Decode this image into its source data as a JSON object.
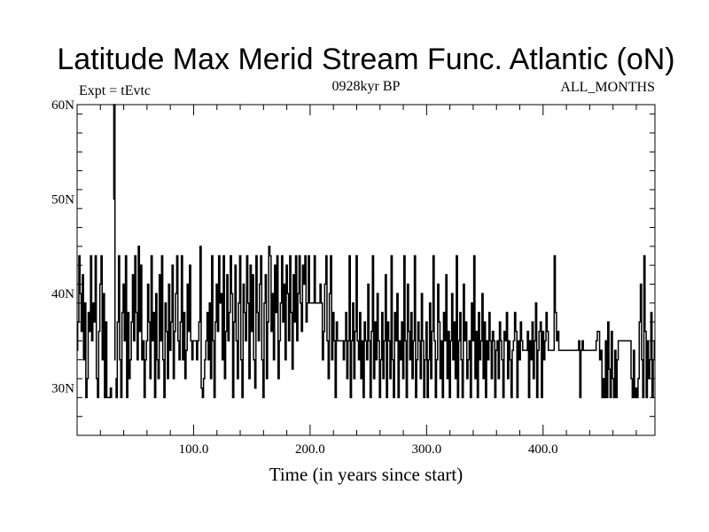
{
  "chart_data": {
    "type": "line",
    "title": "Latitude Max Merid Stream Func. Atlantic (oN)",
    "subtitle_left": "Expt = tEvtc",
    "subtitle_center": "0928kyr BP",
    "subtitle_right": "ALL_MONTHS",
    "xlabel": "Time (in years since start)",
    "ylabel": "",
    "xlim": [
      0,
      496
    ],
    "ylim": [
      25,
      60
    ],
    "x_ticks": [
      100,
      200,
      300,
      400
    ],
    "x_tick_labels": [
      "100.0",
      "200.0",
      "300.0",
      "400.0"
    ],
    "y_ticks": [
      30,
      40,
      50,
      60
    ],
    "y_tick_labels": [
      "30N",
      "40N",
      "50N",
      "60N"
    ],
    "grid": false,
    "series": [
      {
        "line_color": "#000000",
        "segments": [
          {
            "x_start": 0,
            "x_end": 10,
            "values": [
              34,
              37,
              44,
              40,
              36,
              42,
              33,
              39,
              29,
              31,
              38
            ]
          },
          {
            "x_start": 10,
            "x_end": 30,
            "values": [
              38,
              36,
              44,
              35,
              39,
              37,
              44,
              31,
              29,
              36,
              41,
              44,
              33,
              40,
              29,
              37,
              29,
              29,
              29,
              30,
              29
            ]
          },
          {
            "x_start": 31,
            "x_end": 33,
            "values": [
              50,
              60,
              33
            ]
          },
          {
            "x_start": 33,
            "x_end": 100,
            "values": [
              31,
              29,
              37,
              44,
              33,
              29,
              38,
              41,
              35,
              44,
              29,
              38,
              31,
              33,
              37,
              42,
              35,
              44,
              38,
              33,
              45,
              36,
              43,
              33,
              35,
              29,
              33,
              35,
              41,
              37,
              31,
              44,
              35,
              38,
              29,
              40,
              33,
              31,
              42,
              35,
              44,
              33,
              29,
              39,
              36,
              31,
              41,
              34,
              37,
              43,
              31,
              36,
              40,
              44,
              35,
              33,
              37,
              44,
              33,
              38,
              31,
              34,
              41,
              36,
              43,
              35,
              33,
              35
            ]
          },
          {
            "x_start": 100,
            "x_end": 200,
            "values": [
              35,
              35,
              35,
              33,
              35,
              37,
              45,
              30,
              29,
              31,
              33,
              35,
              38,
              33,
              39,
              31,
              44,
              35,
              29,
              37,
              41,
              36,
              44,
              39,
              40,
              33,
              44,
              31,
              36,
              42,
              35,
              38,
              44,
              40,
              29,
              37,
              43,
              35,
              31,
              39,
              44,
              33,
              29,
              41,
              38,
              35,
              44,
              39,
              31,
              43,
              36,
              42,
              33,
              30,
              44,
              38,
              35,
              41,
              44,
              33,
              29,
              39,
              42,
              31,
              37,
              45,
              44,
              36,
              40,
              33,
              43,
              38,
              44,
              31,
              35,
              39,
              44,
              37,
              41,
              33,
              43,
              40,
              35,
              44,
              38,
              32,
              42,
              37,
              44,
              35,
              40,
              44,
              39,
              36,
              43,
              41,
              44,
              37,
              39,
              44,
              39
            ]
          },
          {
            "x_start": 200,
            "x_end": 300,
            "values": [
              39,
              39,
              39,
              39,
              44,
              39,
              39,
              39,
              39,
              41,
              39,
              33,
              36,
              41,
              44,
              35,
              31,
              40,
              44,
              33,
              38,
              35,
              29,
              37,
              35,
              35,
              35,
              35,
              35,
              33,
              35,
              38,
              31,
              35,
              44,
              29,
              35,
              39,
              31,
              36,
              44,
              35,
              33,
              38,
              31,
              35,
              29,
              37,
              35,
              33,
              41,
              35,
              29,
              36,
              44,
              31,
              37,
              33,
              40,
              35,
              29,
              33,
              38,
              31,
              35,
              42,
              29,
              37,
              35,
              31,
              44,
              33,
              29,
              38,
              35,
              40,
              29,
              35,
              33,
              37,
              31,
              44,
              35,
              29,
              41,
              36,
              33,
              38,
              31,
              35,
              44,
              29,
              33,
              37,
              35,
              31,
              40,
              35,
              29,
              33,
              37
            ]
          },
          {
            "x_start": 300,
            "x_end": 410,
            "values": [
              37,
              29,
              33,
              39,
              31,
              36,
              44,
              35,
              29,
              33,
              41,
              37,
              31,
              35,
              29,
              38,
              35,
              42,
              31,
              36,
              29,
              35,
              40,
              33,
              37,
              31,
              44,
              29,
              35,
              38,
              33,
              29,
              41,
              35,
              37,
              31,
              33,
              35,
              29,
              39,
              35,
              44,
              31,
              36,
              29,
              38,
              33,
              35,
              40,
              31,
              37,
              29,
              35,
              33,
              38,
              35,
              31,
              36,
              35,
              29,
              34,
              35,
              31,
              37,
              35,
              33,
              29,
              36,
              35,
              38,
              31,
              35,
              33,
              29,
              34,
              35,
              38,
              36,
              29,
              35,
              33,
              37,
              35,
              34,
              34,
              34,
              34,
              36,
              29,
              35,
              33,
              37,
              31,
              35,
              39,
              29,
              34,
              36,
              37,
              29,
              36,
              33,
              35,
              38,
              36,
              34,
              34,
              34,
              34,
              34,
              44
            ]
          },
          {
            "x_start": 410,
            "x_end": 496,
            "values": [
              44,
              38,
              35,
              36,
              34,
              34,
              34,
              34,
              34,
              34,
              34,
              34,
              34,
              34,
              34,
              34,
              34,
              34,
              34,
              34,
              34,
              35,
              29,
              34,
              35,
              34,
              34,
              34,
              34,
              34,
              34,
              34,
              34,
              34,
              34,
              34,
              35,
              36,
              36,
              33,
              34,
              29,
              31,
              29,
              35,
              29,
              37,
              32,
              29,
              36,
              31,
              29,
              34,
              29,
              33,
              35,
              35,
              35,
              35,
              35,
              35,
              35,
              35,
              35,
              35,
              35,
              31,
              29,
              34,
              29,
              30,
              29,
              31,
              37,
              41,
              33,
              29,
              44,
              36,
              29,
              35,
              31,
              33,
              38,
              29,
              33,
              35
            ]
          }
        ]
      }
    ]
  }
}
